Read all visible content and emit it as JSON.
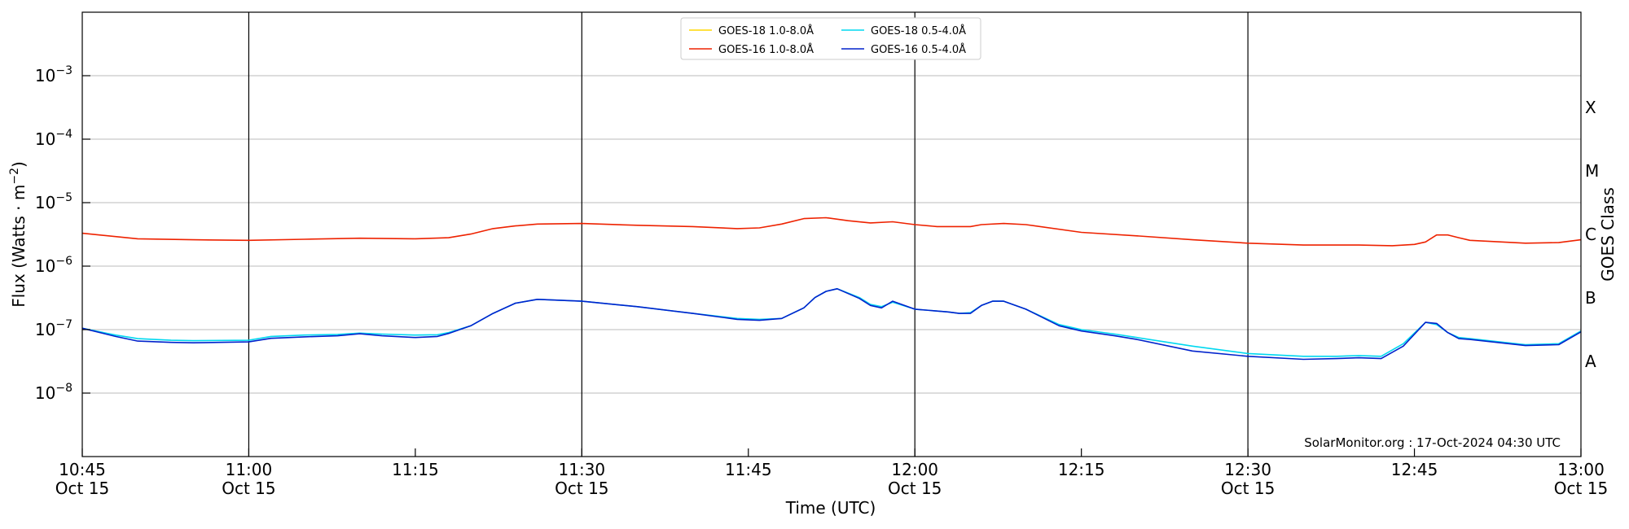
{
  "chart_data": {
    "type": "line",
    "xlabel": "Time (UTC)",
    "ylabel": "Flux (Watts · m⁻²)",
    "ylabel_right": "GOES Class",
    "y_scale": "log",
    "ylim": [
      1e-09,
      0.01
    ],
    "xlim": [
      "10:45",
      "13:00"
    ],
    "date": "Oct 15",
    "x_ticks": [
      {
        "time": "10:45",
        "label": "10:45",
        "sublabel": "Oct 15"
      },
      {
        "time": "11:00",
        "label": "11:00",
        "sublabel": "Oct 15"
      },
      {
        "time": "11:15",
        "label": "11:15",
        "sublabel": ""
      },
      {
        "time": "11:30",
        "label": "11:30",
        "sublabel": "Oct 15"
      },
      {
        "time": "11:45",
        "label": "11:45",
        "sublabel": ""
      },
      {
        "time": "12:00",
        "label": "12:00",
        "sublabel": "Oct 15"
      },
      {
        "time": "12:15",
        "label": "12:15",
        "sublabel": ""
      },
      {
        "time": "12:30",
        "label": "12:30",
        "sublabel": "Oct 15"
      },
      {
        "time": "12:45",
        "label": "12:45",
        "sublabel": ""
      },
      {
        "time": "13:00",
        "label": "13:00",
        "sublabel": "Oct 15"
      }
    ],
    "y_ticks": [
      {
        "value": 1e-08,
        "base": "10",
        "exp": "−8"
      },
      {
        "value": 1e-07,
        "base": "10",
        "exp": "−7"
      },
      {
        "value": 1e-06,
        "base": "10",
        "exp": "−6"
      },
      {
        "value": 1e-05,
        "base": "10",
        "exp": "−5"
      },
      {
        "value": 0.0001,
        "base": "10",
        "exp": "−4"
      },
      {
        "value": 0.001,
        "base": "10",
        "exp": "−3"
      }
    ],
    "goes_classes": [
      {
        "label": "A",
        "value": 3.16e-08
      },
      {
        "label": "B",
        "value": 3.16e-07
      },
      {
        "label": "C",
        "value": 3.16e-06
      },
      {
        "label": "M",
        "value": 3.16e-05
      },
      {
        "label": "X",
        "value": 0.000316
      }
    ],
    "vertical_lines": [
      "11:00",
      "11:30",
      "12:00",
      "12:30"
    ],
    "grid": "horizontal at y ticks",
    "legend_position": "top-center",
    "annotation": "SolarMonitor.org : 17-Oct-2024 04:30 UTC",
    "series": [
      {
        "name": "GOES-18 1.0-8.0Å",
        "color": "#ffd700",
        "x": [],
        "y": []
      },
      {
        "name": "GOES-16 1.0-8.0Å",
        "color": "#ee2200",
        "x": [
          "10:45",
          "10:50",
          "10:55",
          "11:00",
          "11:05",
          "11:10",
          "11:15",
          "11:18",
          "11:20",
          "11:22",
          "11:24",
          "11:26",
          "11:30",
          "11:35",
          "11:40",
          "11:44",
          "11:46",
          "11:48",
          "11:50",
          "11:52",
          "11:54",
          "11:56",
          "11:58",
          "12:00",
          "12:02",
          "12:05",
          "12:06",
          "12:08",
          "12:10",
          "12:15",
          "12:20",
          "12:25",
          "12:30",
          "12:35",
          "12:40",
          "12:43",
          "12:45",
          "12:46",
          "12:47",
          "12:48",
          "12:49",
          "12:50",
          "12:55",
          "12:58",
          "13:00"
        ],
        "y": [
          3.3e-06,
          2.7e-06,
          2.6e-06,
          2.55e-06,
          2.65e-06,
          2.75e-06,
          2.7e-06,
          2.8e-06,
          3.2e-06,
          3.9e-06,
          4.3e-06,
          4.6e-06,
          4.7e-06,
          4.4e-06,
          4.2e-06,
          3.9e-06,
          4e-06,
          4.6e-06,
          5.6e-06,
          5.8e-06,
          5.2e-06,
          4.8e-06,
          5e-06,
          4.5e-06,
          4.2e-06,
          4.2e-06,
          4.5e-06,
          4.7e-06,
          4.5e-06,
          3.4e-06,
          3e-06,
          2.6e-06,
          2.3e-06,
          2.15e-06,
          2.15e-06,
          2.1e-06,
          2.2e-06,
          2.4e-06,
          3.1e-06,
          3.1e-06,
          2.8e-06,
          2.55e-06,
          2.3e-06,
          2.35e-06,
          2.6e-06
        ]
      },
      {
        "name": "GOES-18 0.5-4.0Å",
        "color": "#00d8f0",
        "x": [
          "10:45",
          "10:48",
          "10:50",
          "10:53",
          "10:55",
          "11:00",
          "11:02",
          "11:05",
          "11:08",
          "11:10",
          "11:12",
          "11:15",
          "11:17",
          "11:18",
          "11:20",
          "11:22",
          "11:24",
          "11:26",
          "11:30",
          "11:35",
          "11:40",
          "11:44",
          "11:46",
          "11:48",
          "11:50",
          "11:51",
          "11:52",
          "11:53",
          "11:55",
          "11:56",
          "11:57",
          "11:58",
          "12:00",
          "12:03",
          "12:04",
          "12:05",
          "12:06",
          "12:07",
          "12:08",
          "12:10",
          "12:13",
          "12:15",
          "12:18",
          "12:20",
          "12:25",
          "12:30",
          "12:35",
          "12:38",
          "12:40",
          "12:42",
          "12:44",
          "12:46",
          "12:47",
          "12:48",
          "12:49",
          "12:50",
          "12:55",
          "12:58",
          "13:00"
        ],
        "y": [
          1.05e-07,
          8.2e-08,
          7.2e-08,
          6.8e-08,
          6.7e-08,
          6.8e-08,
          7.8e-08,
          8.2e-08,
          8.4e-08,
          8.8e-08,
          8.5e-08,
          8.2e-08,
          8.3e-08,
          9e-08,
          1.15e-07,
          1.8e-07,
          2.6e-07,
          3e-07,
          2.8e-07,
          2.3e-07,
          1.8e-07,
          1.5e-07,
          1.45e-07,
          1.5e-07,
          2.2e-07,
          3.2e-07,
          4e-07,
          4.4e-07,
          3.2e-07,
          2.5e-07,
          2.3e-07,
          2.7e-07,
          2.1e-07,
          1.9e-07,
          1.8e-07,
          1.85e-07,
          2.4e-07,
          2.8e-07,
          2.8e-07,
          2.1e-07,
          1.2e-07,
          1e-07,
          8.5e-08,
          7.5e-08,
          5.5e-08,
          4.2e-08,
          3.8e-08,
          3.8e-08,
          3.9e-08,
          3.8e-08,
          6e-08,
          1.3e-07,
          1.2e-07,
          9e-08,
          7.5e-08,
          7.2e-08,
          5.8e-08,
          6e-08,
          9.5e-08
        ]
      },
      {
        "name": "GOES-16 0.5-4.0Å",
        "color": "#0022cc",
        "x": [
          "10:45",
          "10:48",
          "10:50",
          "10:53",
          "10:55",
          "11:00",
          "11:02",
          "11:05",
          "11:08",
          "11:10",
          "11:12",
          "11:15",
          "11:17",
          "11:18",
          "11:20",
          "11:22",
          "11:24",
          "11:26",
          "11:30",
          "11:35",
          "11:40",
          "11:44",
          "11:46",
          "11:48",
          "11:50",
          "11:51",
          "11:52",
          "11:53",
          "11:55",
          "11:56",
          "11:57",
          "11:58",
          "12:00",
          "12:03",
          "12:04",
          "12:05",
          "12:06",
          "12:07",
          "12:08",
          "12:10",
          "12:13",
          "12:15",
          "12:18",
          "12:20",
          "12:25",
          "12:30",
          "12:35",
          "12:38",
          "12:40",
          "12:42",
          "12:44",
          "12:46",
          "12:47",
          "12:48",
          "12:49",
          "12:50",
          "12:55",
          "12:58",
          "13:00"
        ],
        "y": [
          1.05e-07,
          7.8e-08,
          6.6e-08,
          6.3e-08,
          6.2e-08,
          6.4e-08,
          7.3e-08,
          7.7e-08,
          8e-08,
          8.6e-08,
          8e-08,
          7.5e-08,
          7.8e-08,
          8.7e-08,
          1.15e-07,
          1.8e-07,
          2.6e-07,
          3e-07,
          2.8e-07,
          2.3e-07,
          1.8e-07,
          1.45e-07,
          1.4e-07,
          1.5e-07,
          2.2e-07,
          3.2e-07,
          4e-07,
          4.4e-07,
          3.1e-07,
          2.4e-07,
          2.2e-07,
          2.8e-07,
          2.1e-07,
          1.9e-07,
          1.8e-07,
          1.8e-07,
          2.4e-07,
          2.8e-07,
          2.8e-07,
          2.1e-07,
          1.15e-07,
          9.5e-08,
          8e-08,
          7e-08,
          4.6e-08,
          3.8e-08,
          3.4e-08,
          3.5e-08,
          3.6e-08,
          3.5e-08,
          5.5e-08,
          1.3e-07,
          1.25e-07,
          9e-08,
          7.2e-08,
          7e-08,
          5.6e-08,
          5.8e-08,
          9.2e-08
        ]
      }
    ]
  }
}
